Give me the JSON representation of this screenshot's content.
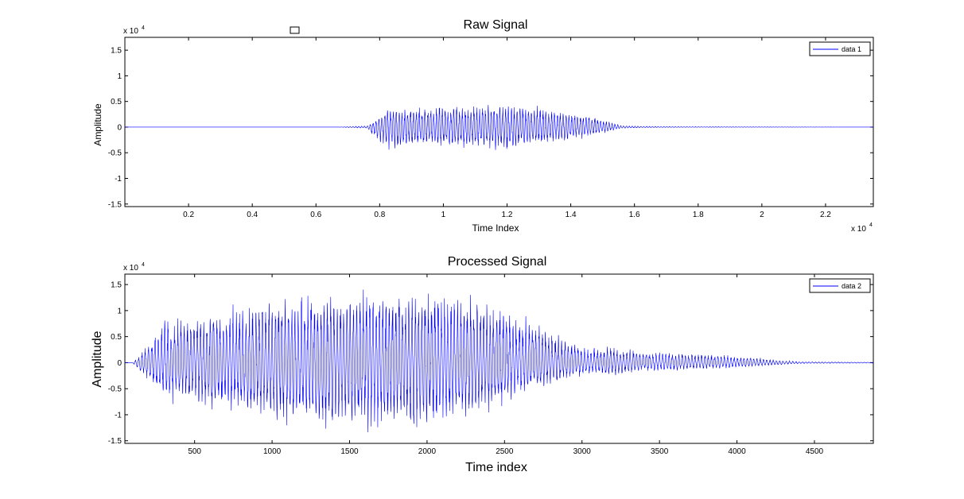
{
  "chart_data": [
    {
      "type": "line",
      "title": "Raw Signal",
      "xlabel": "Time Index",
      "ylabel": "Amplitude",
      "x_exponent_label": "x 10",
      "x_exponent_power": "4",
      "y_exponent_label": "x 10",
      "y_exponent_power": "4",
      "xlim": [
        0,
        23500
      ],
      "ylim": [
        -15500,
        17500
      ],
      "xticks": [
        2000,
        4000,
        6000,
        8000,
        10000,
        12000,
        14000,
        16000,
        18000,
        20000,
        22000
      ],
      "xtick_labels": [
        "0.2",
        "0.4",
        "0.6",
        "0.8",
        "1",
        "1.2",
        "1.4",
        "1.6",
        "1.8",
        "2",
        "2.2"
      ],
      "yticks": [
        -15000,
        -10000,
        -5000,
        0,
        5000,
        10000,
        15000
      ],
      "ytick_labels": [
        "-1.5",
        "-1",
        "-0.5",
        "0",
        "0.5",
        "1",
        "1.5"
      ],
      "line_color": "#0000ff",
      "legend": {
        "placement": "top-right",
        "entries": [
          "data 1"
        ]
      },
      "series": [
        {
          "name": "data 1",
          "envelope": {
            "x": [
              0,
              6700,
              7600,
              7900,
              8300,
              9000,
              10000,
              11000,
              11500,
              12000,
              12500,
              13500,
              14500,
              15200,
              15600,
              16500,
              17600,
              23500
            ],
            "upper": [
              0,
              0,
              300,
              2000,
              5000,
              4500,
              4800,
              5200,
              5500,
              5800,
              5200,
              4000,
              3000,
              1500,
              300,
              200,
              100,
              0
            ],
            "lower": [
              0,
              0,
              -300,
              -3000,
              -5200,
              -4200,
              -4500,
              -4800,
              -5000,
              -5300,
              -4700,
              -3500,
              -2500,
              -1000,
              -300,
              -100,
              -50,
              0
            ]
          }
        }
      ]
    },
    {
      "type": "line",
      "title": "Processed Signal",
      "xlabel": "Time index",
      "ylabel": "Amplitude",
      "y_exponent_label": "x 10",
      "y_exponent_power": "4",
      "xlim": [
        50,
        4880
      ],
      "ylim": [
        -15500,
        17000
      ],
      "xticks": [
        500,
        1000,
        1500,
        2000,
        2500,
        3000,
        3500,
        4000,
        4500
      ],
      "xtick_labels": [
        "500",
        "1000",
        "1500",
        "2000",
        "2500",
        "3000",
        "3500",
        "4000",
        "4500"
      ],
      "yticks": [
        -15000,
        -10000,
        -5000,
        0,
        5000,
        10000,
        15000
      ],
      "ytick_labels": [
        "-1.5",
        "-1",
        "-0.5",
        "0",
        "0.5",
        "1",
        "1.5"
      ],
      "line_color": "#0000ff",
      "legend": {
        "placement": "top-right",
        "entries": [
          "data 2"
        ]
      },
      "series": [
        {
          "name": "data 2",
          "envelope": {
            "x": [
              50,
              100,
              130,
              200,
              300,
              400,
              600,
              800,
              1000,
              1200,
              1400,
              1600,
              1800,
              2000,
              2100,
              2200,
              2400,
              2600,
              2800,
              3000,
              3200,
              3400,
              3600,
              3800,
              4000,
              4200,
              4400,
              4880
            ],
            "upper": [
              0,
              0,
              1000,
              5000,
              10000,
              10500,
              11500,
              12500,
              15500,
              16000,
              16000,
              16500,
              17000,
              16500,
              16000,
              15000,
              14000,
              11500,
              7000,
              3500,
              3500,
              2500,
              2200,
              2000,
              1500,
              800,
              200,
              100
            ],
            "lower": [
              0,
              0,
              -1500,
              -4000,
              -8500,
              -9000,
              -10500,
              -12000,
              -13500,
              -14000,
              -15000,
              -15500,
              -15500,
              -15000,
              -14000,
              -13000,
              -11000,
              -8000,
              -5000,
              -3000,
              -3000,
              -2000,
              -1800,
              -1500,
              -1200,
              -700,
              -200,
              -100
            ]
          }
        }
      ]
    }
  ]
}
